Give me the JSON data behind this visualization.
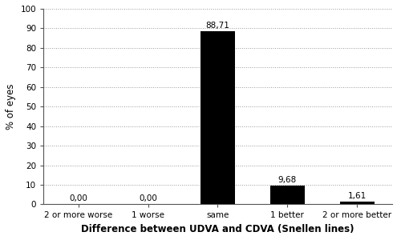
{
  "categories": [
    "2 or more worse",
    "1 worse",
    "same",
    "1 better",
    "2 or more better"
  ],
  "values": [
    0.0,
    0.0,
    88.71,
    9.68,
    1.61
  ],
  "labels": [
    "0,00",
    "0,00",
    "88,71",
    "9,68",
    "1,61"
  ],
  "bar_color": "#000000",
  "ylabel": "% of eyes",
  "xlabel": "Difference between UDVA and CDVA (Snellen lines)",
  "ylim": [
    0,
    100
  ],
  "yticks": [
    0,
    10,
    20,
    30,
    40,
    50,
    60,
    70,
    80,
    90,
    100
  ],
  "background_color": "#ffffff",
  "grid_color": "#999999",
  "label_fontsize": 7.5,
  "xlabel_fontsize": 8.5,
  "ylabel_fontsize": 8.5,
  "tick_fontsize": 7.5,
  "bar_width": 0.5
}
